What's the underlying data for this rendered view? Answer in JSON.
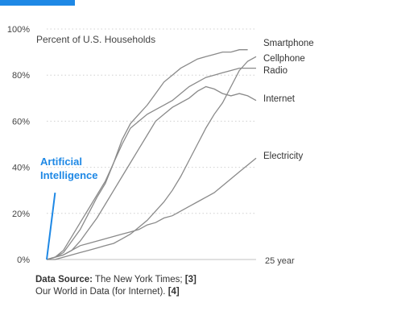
{
  "chart_data": {
    "type": "line",
    "title": "Percent of U.S. Households",
    "x_end_label": "25 year",
    "xlim": [
      0,
      25
    ],
    "ylim": [
      0,
      100
    ],
    "y_ticks": [
      "0%",
      "20%",
      "40%",
      "60%",
      "80%",
      "100%"
    ],
    "grid": true,
    "series": [
      {
        "name": "Smartphone",
        "x": [
          0,
          1,
          2,
          3,
          4,
          5,
          6,
          7,
          8,
          9,
          10,
          11,
          12,
          13,
          14,
          15,
          16,
          17,
          18,
          19,
          20,
          21,
          22,
          23,
          24
        ],
        "y": [
          0,
          1,
          3,
          8,
          13,
          20,
          27,
          33,
          42,
          52,
          59,
          63,
          67,
          72,
          77,
          80,
          83,
          85,
          87,
          88,
          89,
          90,
          90,
          91,
          91
        ]
      },
      {
        "name": "Cellphone",
        "x": [
          0,
          1,
          2,
          3,
          4,
          5,
          6,
          7,
          8,
          9,
          10,
          11,
          12,
          13,
          14,
          15,
          16,
          17,
          18,
          19,
          20,
          21,
          22,
          23,
          24,
          25
        ],
        "y": [
          0,
          0,
          1,
          2,
          3,
          4,
          5,
          6,
          7,
          9,
          11,
          14,
          17,
          21,
          25,
          30,
          36,
          43,
          50,
          57,
          63,
          68,
          75,
          82,
          86,
          88
        ]
      },
      {
        "name": "Radio",
        "x": [
          0,
          1,
          2,
          3,
          4,
          5,
          6,
          7,
          8,
          9,
          10,
          11,
          12,
          13,
          14,
          15,
          16,
          17,
          18,
          19,
          20,
          21,
          22,
          23,
          24,
          25
        ],
        "y": [
          0,
          1,
          4,
          10,
          16,
          22,
          28,
          34,
          42,
          50,
          57,
          60,
          63,
          65,
          67,
          69,
          72,
          75,
          77,
          79,
          80,
          81,
          82,
          83,
          83,
          83
        ]
      },
      {
        "name": "Internet",
        "x": [
          0,
          1,
          2,
          3,
          4,
          5,
          6,
          7,
          8,
          9,
          10,
          11,
          12,
          13,
          14,
          15,
          16,
          17,
          18,
          19,
          20,
          21,
          22,
          23,
          24,
          25
        ],
        "y": [
          0,
          1,
          2,
          4,
          8,
          13,
          18,
          24,
          30,
          36,
          42,
          48,
          54,
          60,
          63,
          66,
          68,
          70,
          73,
          75,
          74,
          72,
          71,
          72,
          71,
          69
        ]
      },
      {
        "name": "Electricity",
        "x": [
          0,
          1,
          2,
          3,
          4,
          5,
          6,
          7,
          8,
          9,
          10,
          11,
          12,
          13,
          14,
          15,
          16,
          17,
          18,
          19,
          20,
          21,
          22,
          23,
          24,
          25
        ],
        "y": [
          0,
          1,
          2,
          4,
          6,
          7,
          8,
          9,
          10,
          11,
          12,
          13,
          15,
          16,
          18,
          19,
          21,
          23,
          25,
          27,
          29,
          32,
          35,
          38,
          41,
          44
        ]
      },
      {
        "name": "Artificial Intelligence",
        "x": [
          0,
          1
        ],
        "y": [
          0,
          29
        ]
      }
    ],
    "annotation": [
      "Artificial",
      "Intelligence"
    ]
  },
  "source": {
    "label": "Data Source:",
    "line1_text": " The New York Times; ",
    "ref1": "[3]",
    "line2_text": "Our World in Data (for Internet). ",
    "ref2": "[4]"
  },
  "colors": {
    "accent": "#1e88e5",
    "series": "#8a8a8a",
    "grid": "#d0d0d0"
  }
}
